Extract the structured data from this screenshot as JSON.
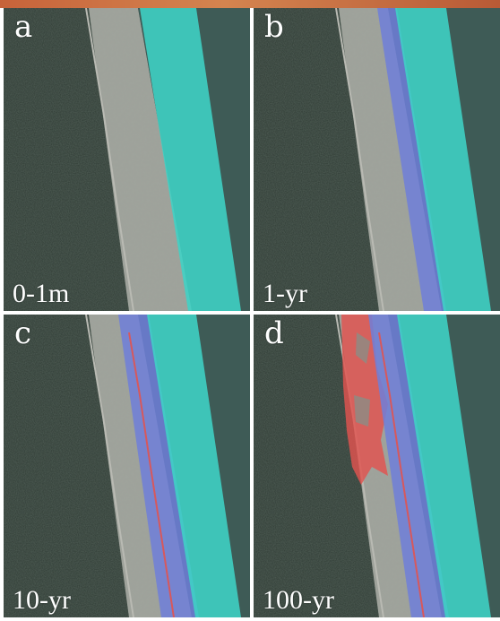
{
  "figure": {
    "accent_color": "#c7633a",
    "panels": [
      {
        "letter": "a",
        "label": "0-1m"
      },
      {
        "letter": "b",
        "label": "1-yr"
      },
      {
        "letter": "c",
        "label": "10-yr"
      },
      {
        "letter": "d",
        "label": "100-yr"
      }
    ],
    "colors": {
      "forest": "#2f3b34",
      "sand": "#a7a8a1",
      "ocean": "#3e5b56",
      "flood_cyan": "#3fd3c6",
      "flood_blue": "#6f7fd9",
      "flood_red": "#e2534f"
    }
  }
}
